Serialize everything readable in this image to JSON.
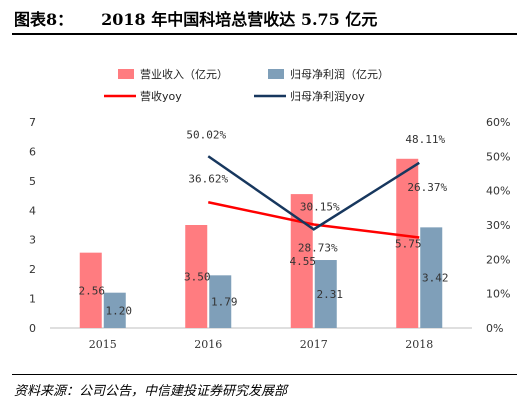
{
  "header": {
    "figure_no": "图表8：",
    "title": "2018 年中国科培总营收达 5.75 亿元"
  },
  "footer": {
    "source": "资料来源：公司公告，中信建投证券研究发展部"
  },
  "colors": {
    "revenue_bar": "#ff7c80",
    "profit_bar": "#7f9fb9",
    "revenue_yoy_line": "#ff0000",
    "profit_yoy_line": "#17375e"
  },
  "chart_data": {
    "type": "bar",
    "categories": [
      "2015",
      "2016",
      "2017",
      "2018"
    ],
    "series": [
      {
        "name": "营业收入（亿元）",
        "kind": "bar",
        "axis": "left",
        "values": [
          2.56,
          3.5,
          4.55,
          5.75
        ],
        "labels": [
          "2.56",
          "3.50",
          "4.55",
          "5.75"
        ]
      },
      {
        "name": "归母净利润（亿元）",
        "kind": "bar",
        "axis": "left",
        "values": [
          1.2,
          1.79,
          2.31,
          3.42
        ],
        "labels": [
          "1.20",
          "1.79",
          "2.31",
          "3.42"
        ]
      },
      {
        "name": "营收yoy",
        "kind": "line",
        "axis": "right",
        "values": [
          null,
          36.62,
          30.15,
          26.37
        ],
        "labels": [
          "",
          "36.62%",
          "30.15%",
          "26.37%"
        ]
      },
      {
        "name": "归母净利润yoy",
        "kind": "line",
        "axis": "right",
        "values": [
          null,
          50.02,
          28.73,
          48.11
        ],
        "labels": [
          "",
          "50.02%",
          "28.73%",
          "48.11%"
        ]
      }
    ],
    "ylim_left": [
      0,
      7
    ],
    "yticks_left": [
      "0",
      "1",
      "2",
      "3",
      "4",
      "5",
      "6",
      "7"
    ],
    "ylim_right": [
      0,
      60
    ],
    "yticks_right": [
      "0%",
      "10%",
      "20%",
      "30%",
      "40%",
      "50%",
      "60%"
    ],
    "legend_position": "top",
    "grid": false
  }
}
